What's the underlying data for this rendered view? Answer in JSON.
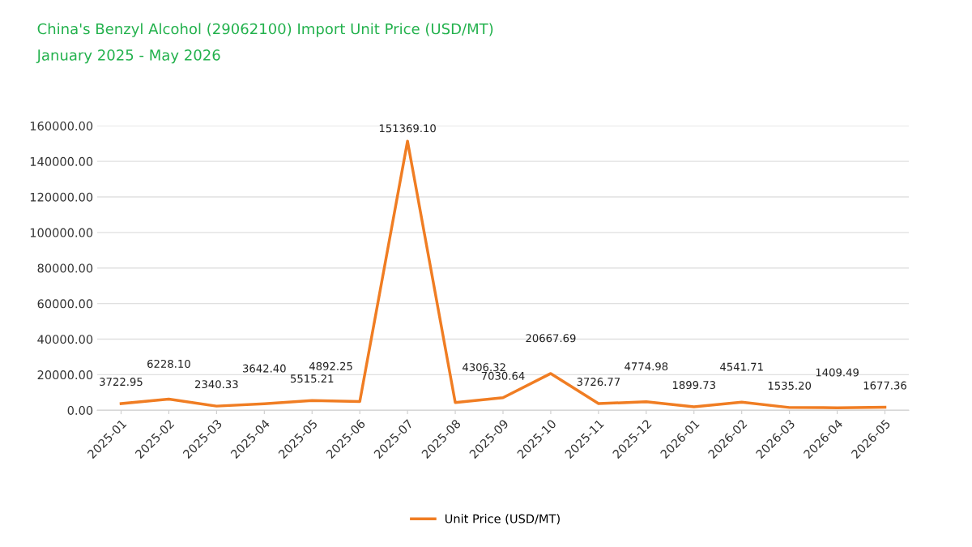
{
  "chart_data": {
    "type": "line",
    "title": "China's Benzyl Alcohol (29062100) Import Unit Price (USD/MT)",
    "subtitle": "January 2025 - May 2026",
    "categories": [
      "2025-01",
      "2025-02",
      "2025-03",
      "2025-04",
      "2025-05",
      "2025-06",
      "2025-07",
      "2025-08",
      "2025-09",
      "2025-10",
      "2025-11",
      "2025-12",
      "2026-01",
      "2026-02",
      "2026-03",
      "2026-04",
      "2026-05"
    ],
    "series": [
      {
        "name": "Unit Price (USD/MT)",
        "color": "#f07d23",
        "values": [
          3722.95,
          6228.1,
          2340.33,
          3642.4,
          5515.21,
          4892.25,
          151369.1,
          4306.32,
          7030.64,
          20667.69,
          3726.77,
          4774.98,
          1899.73,
          4541.71,
          1535.2,
          1409.49,
          1677.36
        ]
      }
    ],
    "ylim": [
      0,
      160000
    ],
    "yticks": [
      {
        "value": 0,
        "label": "0.00"
      },
      {
        "value": 20000,
        "label": "20000.00"
      },
      {
        "value": 40000,
        "label": "40000.00"
      },
      {
        "value": 60000,
        "label": "60000.00"
      },
      {
        "value": 80000,
        "label": "80000.00"
      },
      {
        "value": 100000,
        "label": "100000.00"
      },
      {
        "value": 120000,
        "label": "120000.00"
      },
      {
        "value": 140000,
        "label": "140000.00"
      },
      {
        "value": 160000,
        "label": "160000.00"
      }
    ],
    "value_labels": [
      "3722.95",
      "6228.10",
      "2340.33",
      "3642.40",
      "5515.21",
      "4892.25",
      "151369.10",
      "4306.32",
      "7030.64",
      "20667.69",
      "3726.77",
      "4774.98",
      "1899.73",
      "4541.71",
      "1535.20",
      "1409.49",
      "1677.36"
    ],
    "grid": "y",
    "legend": "bottom",
    "marker": "none",
    "line_style": "solid"
  }
}
